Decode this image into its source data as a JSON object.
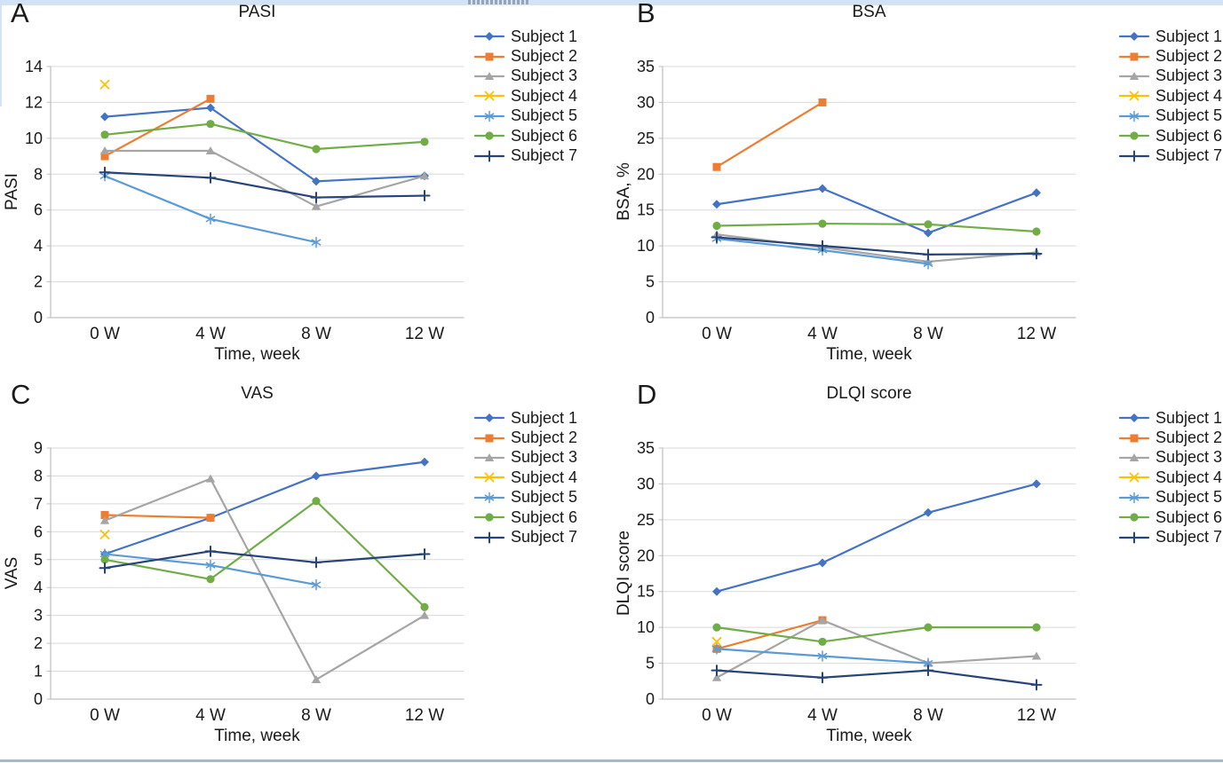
{
  "decor": {
    "top_strip_color": "#d3e3f6",
    "side_strip_color": "#d3e3f6",
    "bottom_strip_color": "#a8b9cc"
  },
  "style": {
    "gridline_color": "#d9d9d9",
    "axis_color": "#bfbfbf",
    "text_color": "#1a1a1a"
  },
  "chart_data": [
    {
      "panel": "A",
      "type": "line",
      "title": "PASI",
      "xlabel": "Time, week",
      "ylabel": "PASI",
      "ylim": [
        0,
        14
      ],
      "ytick_step": 2,
      "grid": true,
      "legend_position": "right",
      "categories": [
        "0 W",
        "4 W",
        "8 W",
        "12 W"
      ],
      "series": [
        {
          "name": "Subject 1",
          "color": "#4472C4",
          "marker": "diamond",
          "values": [
            11.2,
            11.7,
            7.6,
            7.9
          ]
        },
        {
          "name": "Subject 2",
          "color": "#ED7D31",
          "marker": "square",
          "values": [
            9.0,
            12.2,
            null,
            null
          ]
        },
        {
          "name": "Subject 3",
          "color": "#A5A5A5",
          "marker": "triangle",
          "values": [
            9.3,
            9.3,
            6.2,
            7.9
          ]
        },
        {
          "name": "Subject 4",
          "color": "#FFC000",
          "marker": "x",
          "values": [
            13.0,
            null,
            null,
            null
          ]
        },
        {
          "name": "Subject 5",
          "color": "#5B9BD5",
          "marker": "asterisk",
          "values": [
            7.9,
            5.5,
            4.2,
            null
          ]
        },
        {
          "name": "Subject 6",
          "color": "#70AD47",
          "marker": "circle",
          "values": [
            10.2,
            10.8,
            9.4,
            9.8
          ]
        },
        {
          "name": "Subject 7",
          "color": "#264478",
          "marker": "plus",
          "values": [
            8.1,
            7.8,
            6.7,
            6.8
          ]
        }
      ]
    },
    {
      "panel": "B",
      "type": "line",
      "title": "BSA",
      "xlabel": "Time, week",
      "ylabel": "BSA, %",
      "ylim": [
        0,
        35
      ],
      "ytick_step": 5,
      "grid": true,
      "legend_position": "right",
      "categories": [
        "0 W",
        "4 W",
        "8 W",
        "12 W"
      ],
      "series": [
        {
          "name": "Subject 1",
          "color": "#4472C4",
          "marker": "diamond",
          "values": [
            15.8,
            18.0,
            11.8,
            17.4
          ]
        },
        {
          "name": "Subject 2",
          "color": "#ED7D31",
          "marker": "square",
          "values": [
            21.0,
            30.0,
            null,
            null
          ]
        },
        {
          "name": "Subject 3",
          "color": "#A5A5A5",
          "marker": "triangle",
          "values": [
            11.6,
            9.8,
            7.8,
            9.1
          ]
        },
        {
          "name": "Subject 4",
          "color": "#FFC000",
          "marker": "x",
          "values": [
            null,
            null,
            null,
            null
          ]
        },
        {
          "name": "Subject 5",
          "color": "#5B9BD5",
          "marker": "asterisk",
          "values": [
            11.0,
            9.4,
            7.5,
            null
          ]
        },
        {
          "name": "Subject 6",
          "color": "#70AD47",
          "marker": "circle",
          "values": [
            12.8,
            13.1,
            13.0,
            12.0
          ]
        },
        {
          "name": "Subject 7",
          "color": "#264478",
          "marker": "plus",
          "values": [
            11.2,
            10.0,
            8.8,
            8.9
          ]
        }
      ]
    },
    {
      "panel": "C",
      "type": "line",
      "title": "VAS",
      "xlabel": "Time, week",
      "ylabel": "VAS",
      "ylim": [
        0,
        9
      ],
      "ytick_step": 1,
      "grid": true,
      "legend_position": "right",
      "categories": [
        "0 W",
        "4 W",
        "8 W",
        "12 W"
      ],
      "series": [
        {
          "name": "Subject 1",
          "color": "#4472C4",
          "marker": "diamond",
          "values": [
            5.2,
            6.5,
            8.0,
            8.5
          ]
        },
        {
          "name": "Subject 2",
          "color": "#ED7D31",
          "marker": "square",
          "values": [
            6.6,
            6.5,
            null,
            null
          ]
        },
        {
          "name": "Subject 3",
          "color": "#A5A5A5",
          "marker": "triangle",
          "values": [
            6.4,
            7.9,
            0.7,
            3.0
          ]
        },
        {
          "name": "Subject 4",
          "color": "#FFC000",
          "marker": "x",
          "values": [
            5.9,
            null,
            null,
            null
          ]
        },
        {
          "name": "Subject 5",
          "color": "#5B9BD5",
          "marker": "asterisk",
          "values": [
            5.2,
            4.8,
            4.1,
            null
          ]
        },
        {
          "name": "Subject 6",
          "color": "#70AD47",
          "marker": "circle",
          "values": [
            5.0,
            4.3,
            7.1,
            3.3
          ]
        },
        {
          "name": "Subject 7",
          "color": "#264478",
          "marker": "plus",
          "values": [
            4.7,
            5.3,
            4.9,
            5.2
          ]
        }
      ]
    },
    {
      "panel": "D",
      "type": "line",
      "title": "DLQI score",
      "xlabel": "Time, week",
      "ylabel": "DLQI score",
      "ylim": [
        0,
        35
      ],
      "ytick_step": 5,
      "grid": true,
      "legend_position": "right",
      "categories": [
        "0 W",
        "4 W",
        "8 W",
        "12 W"
      ],
      "series": [
        {
          "name": "Subject 1",
          "color": "#4472C4",
          "marker": "diamond",
          "values": [
            15,
            19,
            26,
            30
          ]
        },
        {
          "name": "Subject 2",
          "color": "#ED7D31",
          "marker": "square",
          "values": [
            7,
            11,
            null,
            null
          ]
        },
        {
          "name": "Subject 3",
          "color": "#A5A5A5",
          "marker": "triangle",
          "values": [
            3,
            11,
            5,
            6
          ]
        },
        {
          "name": "Subject 4",
          "color": "#FFC000",
          "marker": "x",
          "values": [
            8,
            null,
            null,
            null
          ]
        },
        {
          "name": "Subject 5",
          "color": "#5B9BD5",
          "marker": "asterisk",
          "values": [
            7,
            6,
            5,
            null
          ]
        },
        {
          "name": "Subject 6",
          "color": "#70AD47",
          "marker": "circle",
          "values": [
            10,
            8,
            10,
            10
          ]
        },
        {
          "name": "Subject 7",
          "color": "#264478",
          "marker": "plus",
          "values": [
            4,
            3,
            4,
            2
          ]
        }
      ]
    }
  ]
}
